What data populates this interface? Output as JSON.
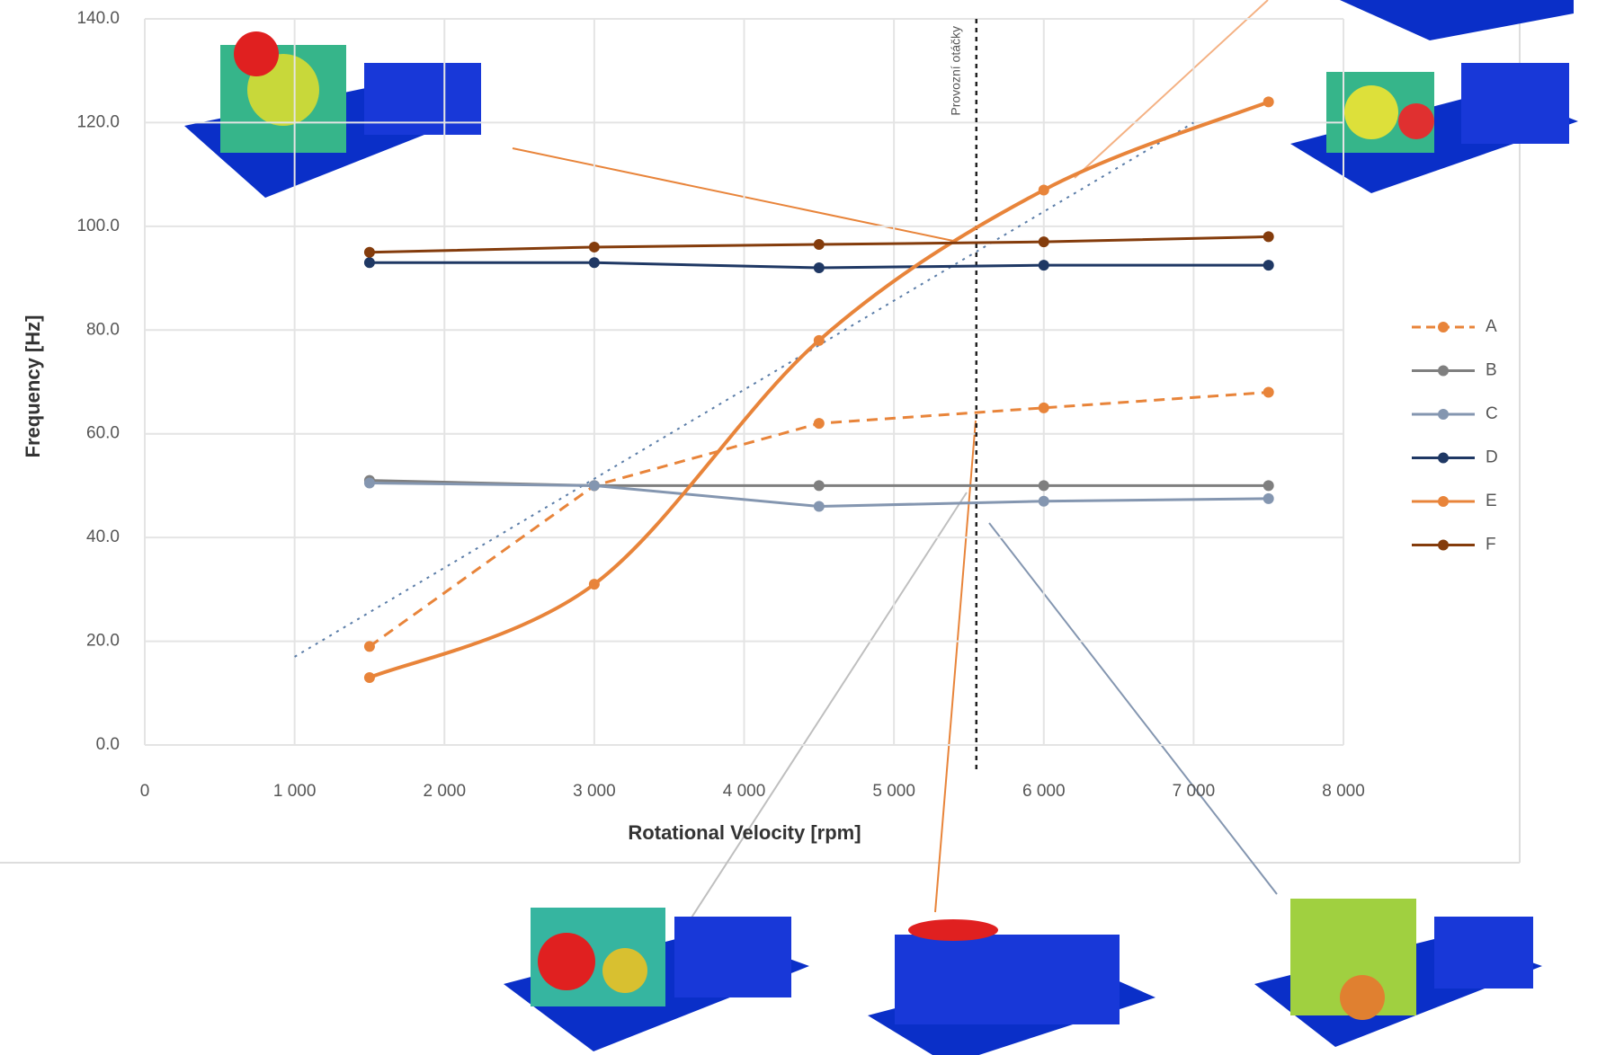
{
  "chart_data": {
    "type": "line",
    "x_label": "Rotational Velocity [rpm]",
    "y_label": "Frequency [Hz]",
    "xlim": [
      0,
      8000
    ],
    "xticks": [
      0,
      {
        "value": 1000,
        "label": "1 000"
      },
      {
        "value": 2000,
        "label": "2 000"
      },
      {
        "value": 3000,
        "label": "3 000"
      },
      {
        "value": 4000,
        "label": "4 000"
      },
      {
        "value": 5000,
        "label": "5 000"
      },
      {
        "value": 6000,
        "label": "6 000"
      },
      {
        "value": 7000,
        "label": "7 000"
      },
      {
        "value": 8000,
        "label": "8 000"
      }
    ],
    "ylim": [
      0,
      140
    ],
    "yticks": [
      {
        "value": 0,
        "label": "0.0"
      },
      {
        "value": 20,
        "label": "20.0"
      },
      {
        "value": 40,
        "label": "40.0"
      },
      {
        "value": 60,
        "label": "60.0"
      },
      {
        "value": 80,
        "label": "80.0"
      },
      {
        "value": 100,
        "label": "100.0"
      },
      {
        "value": 120,
        "label": "120.0"
      },
      {
        "value": 140,
        "label": "140.0"
      }
    ],
    "grid": true,
    "legend": "right",
    "x": [
      1500,
      3000,
      4500,
      6000,
      7500
    ],
    "series": [
      {
        "name": "A",
        "color": "#e8843a",
        "line_style": "dashed",
        "values": [
          19,
          50,
          62,
          65,
          68
        ]
      },
      {
        "name": "B",
        "color": "#7f7f7f",
        "line_style": "solid",
        "values": [
          51,
          50,
          50,
          50,
          50
        ]
      },
      {
        "name": "C",
        "color": "#8496b0",
        "line_style": "solid",
        "values": [
          50.5,
          50,
          46,
          47,
          47.5
        ]
      },
      {
        "name": "D",
        "color": "#1f3864",
        "line_style": "solid",
        "values": [
          93,
          93,
          92,
          92.5,
          92.5
        ]
      },
      {
        "name": "E",
        "color": "#e8843a",
        "line_style": "smooth",
        "values": [
          13,
          31,
          78,
          107,
          124
        ]
      },
      {
        "name": "F",
        "color": "#843c0c",
        "line_style": "solid",
        "values": [
          95,
          96,
          96.5,
          97,
          98
        ]
      }
    ],
    "order_line": {
      "x": [
        1000,
        7000
      ],
      "y": [
        17,
        120
      ],
      "color": "#5b7da8"
    },
    "operating_speed": {
      "x": 5550,
      "label": "Provozní otáčky"
    }
  }
}
